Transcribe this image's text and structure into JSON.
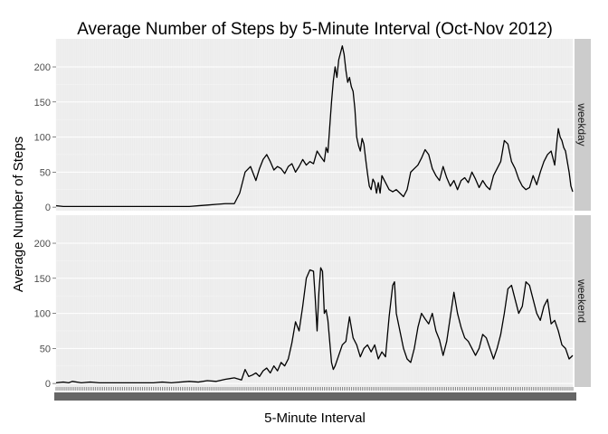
{
  "chart_data": {
    "type": "line",
    "title": "Average Number of Steps by 5-Minute Interval (Oct-Nov 2012)",
    "xlabel": "5-Minute Interval",
    "ylabel": "Average Number of Steps",
    "y_ticks": [
      0,
      50,
      100,
      150,
      200
    ],
    "ylim": [
      -5,
      240
    ],
    "x_range": [
      1,
      288
    ],
    "x_tick_labels_overplotted": true,
    "grid": true,
    "facets": [
      "weekday",
      "weekend"
    ],
    "series": [
      {
        "name": "weekday",
        "points": [
          [
            1,
            2
          ],
          [
            5,
            1
          ],
          [
            10,
            1
          ],
          [
            15,
            1
          ],
          [
            20,
            1
          ],
          [
            25,
            1
          ],
          [
            30,
            1
          ],
          [
            35,
            1
          ],
          [
            40,
            1
          ],
          [
            45,
            1
          ],
          [
            50,
            1
          ],
          [
            55,
            1
          ],
          [
            60,
            1
          ],
          [
            65,
            1
          ],
          [
            70,
            1
          ],
          [
            75,
            1
          ],
          [
            80,
            2
          ],
          [
            85,
            3
          ],
          [
            90,
            4
          ],
          [
            95,
            5
          ],
          [
            100,
            5
          ],
          [
            103,
            20
          ],
          [
            106,
            50
          ],
          [
            109,
            58
          ],
          [
            112,
            38
          ],
          [
            114,
            55
          ],
          [
            116,
            68
          ],
          [
            118,
            75
          ],
          [
            120,
            65
          ],
          [
            122,
            53
          ],
          [
            124,
            58
          ],
          [
            126,
            55
          ],
          [
            128,
            48
          ],
          [
            130,
            58
          ],
          [
            132,
            62
          ],
          [
            134,
            50
          ],
          [
            136,
            58
          ],
          [
            138,
            68
          ],
          [
            140,
            60
          ],
          [
            142,
            65
          ],
          [
            144,
            62
          ],
          [
            146,
            80
          ],
          [
            148,
            72
          ],
          [
            150,
            65
          ],
          [
            151,
            85
          ],
          [
            152,
            78
          ],
          [
            154,
            150
          ],
          [
            155,
            180
          ],
          [
            156,
            200
          ],
          [
            157,
            185
          ],
          [
            158,
            210
          ],
          [
            159,
            220
          ],
          [
            160,
            230
          ],
          [
            161,
            218
          ],
          [
            162,
            195
          ],
          [
            163,
            178
          ],
          [
            164,
            185
          ],
          [
            165,
            172
          ],
          [
            166,
            165
          ],
          [
            167,
            140
          ],
          [
            168,
            100
          ],
          [
            169,
            88
          ],
          [
            170,
            80
          ],
          [
            171,
            98
          ],
          [
            172,
            90
          ],
          [
            173,
            68
          ],
          [
            174,
            48
          ],
          [
            175,
            30
          ],
          [
            176,
            25
          ],
          [
            177,
            40
          ],
          [
            178,
            35
          ],
          [
            179,
            20
          ],
          [
            180,
            35
          ],
          [
            181,
            20
          ],
          [
            182,
            45
          ],
          [
            184,
            35
          ],
          [
            186,
            25
          ],
          [
            188,
            22
          ],
          [
            190,
            25
          ],
          [
            192,
            20
          ],
          [
            194,
            15
          ],
          [
            196,
            25
          ],
          [
            198,
            50
          ],
          [
            200,
            55
          ],
          [
            202,
            60
          ],
          [
            204,
            70
          ],
          [
            206,
            82
          ],
          [
            208,
            75
          ],
          [
            210,
            55
          ],
          [
            212,
            45
          ],
          [
            214,
            38
          ],
          [
            216,
            58
          ],
          [
            218,
            42
          ],
          [
            220,
            30
          ],
          [
            222,
            38
          ],
          [
            224,
            25
          ],
          [
            226,
            38
          ],
          [
            228,
            42
          ],
          [
            230,
            35
          ],
          [
            232,
            50
          ],
          [
            234,
            40
          ],
          [
            236,
            28
          ],
          [
            238,
            38
          ],
          [
            240,
            30
          ],
          [
            242,
            25
          ],
          [
            244,
            45
          ],
          [
            246,
            55
          ],
          [
            248,
            65
          ],
          [
            250,
            95
          ],
          [
            252,
            90
          ],
          [
            254,
            65
          ],
          [
            256,
            55
          ],
          [
            258,
            40
          ],
          [
            260,
            30
          ],
          [
            262,
            25
          ],
          [
            264,
            28
          ],
          [
            266,
            45
          ],
          [
            268,
            32
          ],
          [
            270,
            50
          ],
          [
            272,
            65
          ],
          [
            274,
            75
          ],
          [
            276,
            80
          ],
          [
            278,
            60
          ],
          [
            279,
            88
          ],
          [
            280,
            112
          ],
          [
            281,
            100
          ],
          [
            282,
            95
          ],
          [
            283,
            85
          ],
          [
            284,
            80
          ],
          [
            285,
            65
          ],
          [
            286,
            50
          ],
          [
            287,
            30
          ],
          [
            288,
            22
          ]
        ]
      },
      {
        "name": "weekend",
        "points": [
          [
            1,
            1
          ],
          [
            5,
            2
          ],
          [
            8,
            1
          ],
          [
            10,
            3
          ],
          [
            15,
            1
          ],
          [
            20,
            2
          ],
          [
            25,
            1
          ],
          [
            30,
            1
          ],
          [
            35,
            1
          ],
          [
            40,
            1
          ],
          [
            45,
            1
          ],
          [
            50,
            1
          ],
          [
            55,
            1
          ],
          [
            60,
            2
          ],
          [
            65,
            1
          ],
          [
            70,
            2
          ],
          [
            75,
            3
          ],
          [
            80,
            2
          ],
          [
            85,
            4
          ],
          [
            90,
            3
          ],
          [
            95,
            6
          ],
          [
            100,
            8
          ],
          [
            104,
            5
          ],
          [
            106,
            20
          ],
          [
            108,
            10
          ],
          [
            110,
            12
          ],
          [
            112,
            15
          ],
          [
            114,
            10
          ],
          [
            116,
            18
          ],
          [
            118,
            22
          ],
          [
            120,
            15
          ],
          [
            122,
            25
          ],
          [
            124,
            18
          ],
          [
            126,
            30
          ],
          [
            128,
            25
          ],
          [
            130,
            35
          ],
          [
            132,
            58
          ],
          [
            134,
            88
          ],
          [
            136,
            75
          ],
          [
            138,
            110
          ],
          [
            140,
            150
          ],
          [
            142,
            162
          ],
          [
            144,
            160
          ],
          [
            145,
            120
          ],
          [
            146,
            75
          ],
          [
            147,
            130
          ],
          [
            148,
            165
          ],
          [
            149,
            160
          ],
          [
            150,
            100
          ],
          [
            151,
            105
          ],
          [
            152,
            90
          ],
          [
            153,
            60
          ],
          [
            154,
            30
          ],
          [
            155,
            20
          ],
          [
            156,
            25
          ],
          [
            158,
            40
          ],
          [
            160,
            55
          ],
          [
            162,
            60
          ],
          [
            164,
            95
          ],
          [
            166,
            65
          ],
          [
            168,
            55
          ],
          [
            170,
            38
          ],
          [
            172,
            50
          ],
          [
            174,
            55
          ],
          [
            176,
            45
          ],
          [
            178,
            55
          ],
          [
            180,
            35
          ],
          [
            182,
            45
          ],
          [
            184,
            38
          ],
          [
            186,
            95
          ],
          [
            188,
            140
          ],
          [
            189,
            145
          ],
          [
            190,
            100
          ],
          [
            192,
            75
          ],
          [
            194,
            50
          ],
          [
            196,
            35
          ],
          [
            198,
            30
          ],
          [
            200,
            50
          ],
          [
            202,
            80
          ],
          [
            204,
            100
          ],
          [
            206,
            92
          ],
          [
            208,
            85
          ],
          [
            210,
            100
          ],
          [
            212,
            75
          ],
          [
            214,
            62
          ],
          [
            216,
            40
          ],
          [
            218,
            60
          ],
          [
            220,
            95
          ],
          [
            222,
            130
          ],
          [
            224,
            100
          ],
          [
            226,
            80
          ],
          [
            228,
            65
          ],
          [
            230,
            60
          ],
          [
            232,
            50
          ],
          [
            234,
            40
          ],
          [
            236,
            50
          ],
          [
            238,
            70
          ],
          [
            240,
            65
          ],
          [
            242,
            50
          ],
          [
            244,
            35
          ],
          [
            246,
            50
          ],
          [
            248,
            70
          ],
          [
            250,
            100
          ],
          [
            252,
            135
          ],
          [
            254,
            140
          ],
          [
            256,
            120
          ],
          [
            258,
            100
          ],
          [
            260,
            110
          ],
          [
            262,
            145
          ],
          [
            264,
            140
          ],
          [
            266,
            120
          ],
          [
            268,
            100
          ],
          [
            270,
            90
          ],
          [
            272,
            110
          ],
          [
            274,
            120
          ],
          [
            276,
            85
          ],
          [
            278,
            90
          ],
          [
            280,
            75
          ],
          [
            282,
            55
          ],
          [
            284,
            50
          ],
          [
            286,
            35
          ],
          [
            288,
            40
          ]
        ]
      }
    ]
  }
}
